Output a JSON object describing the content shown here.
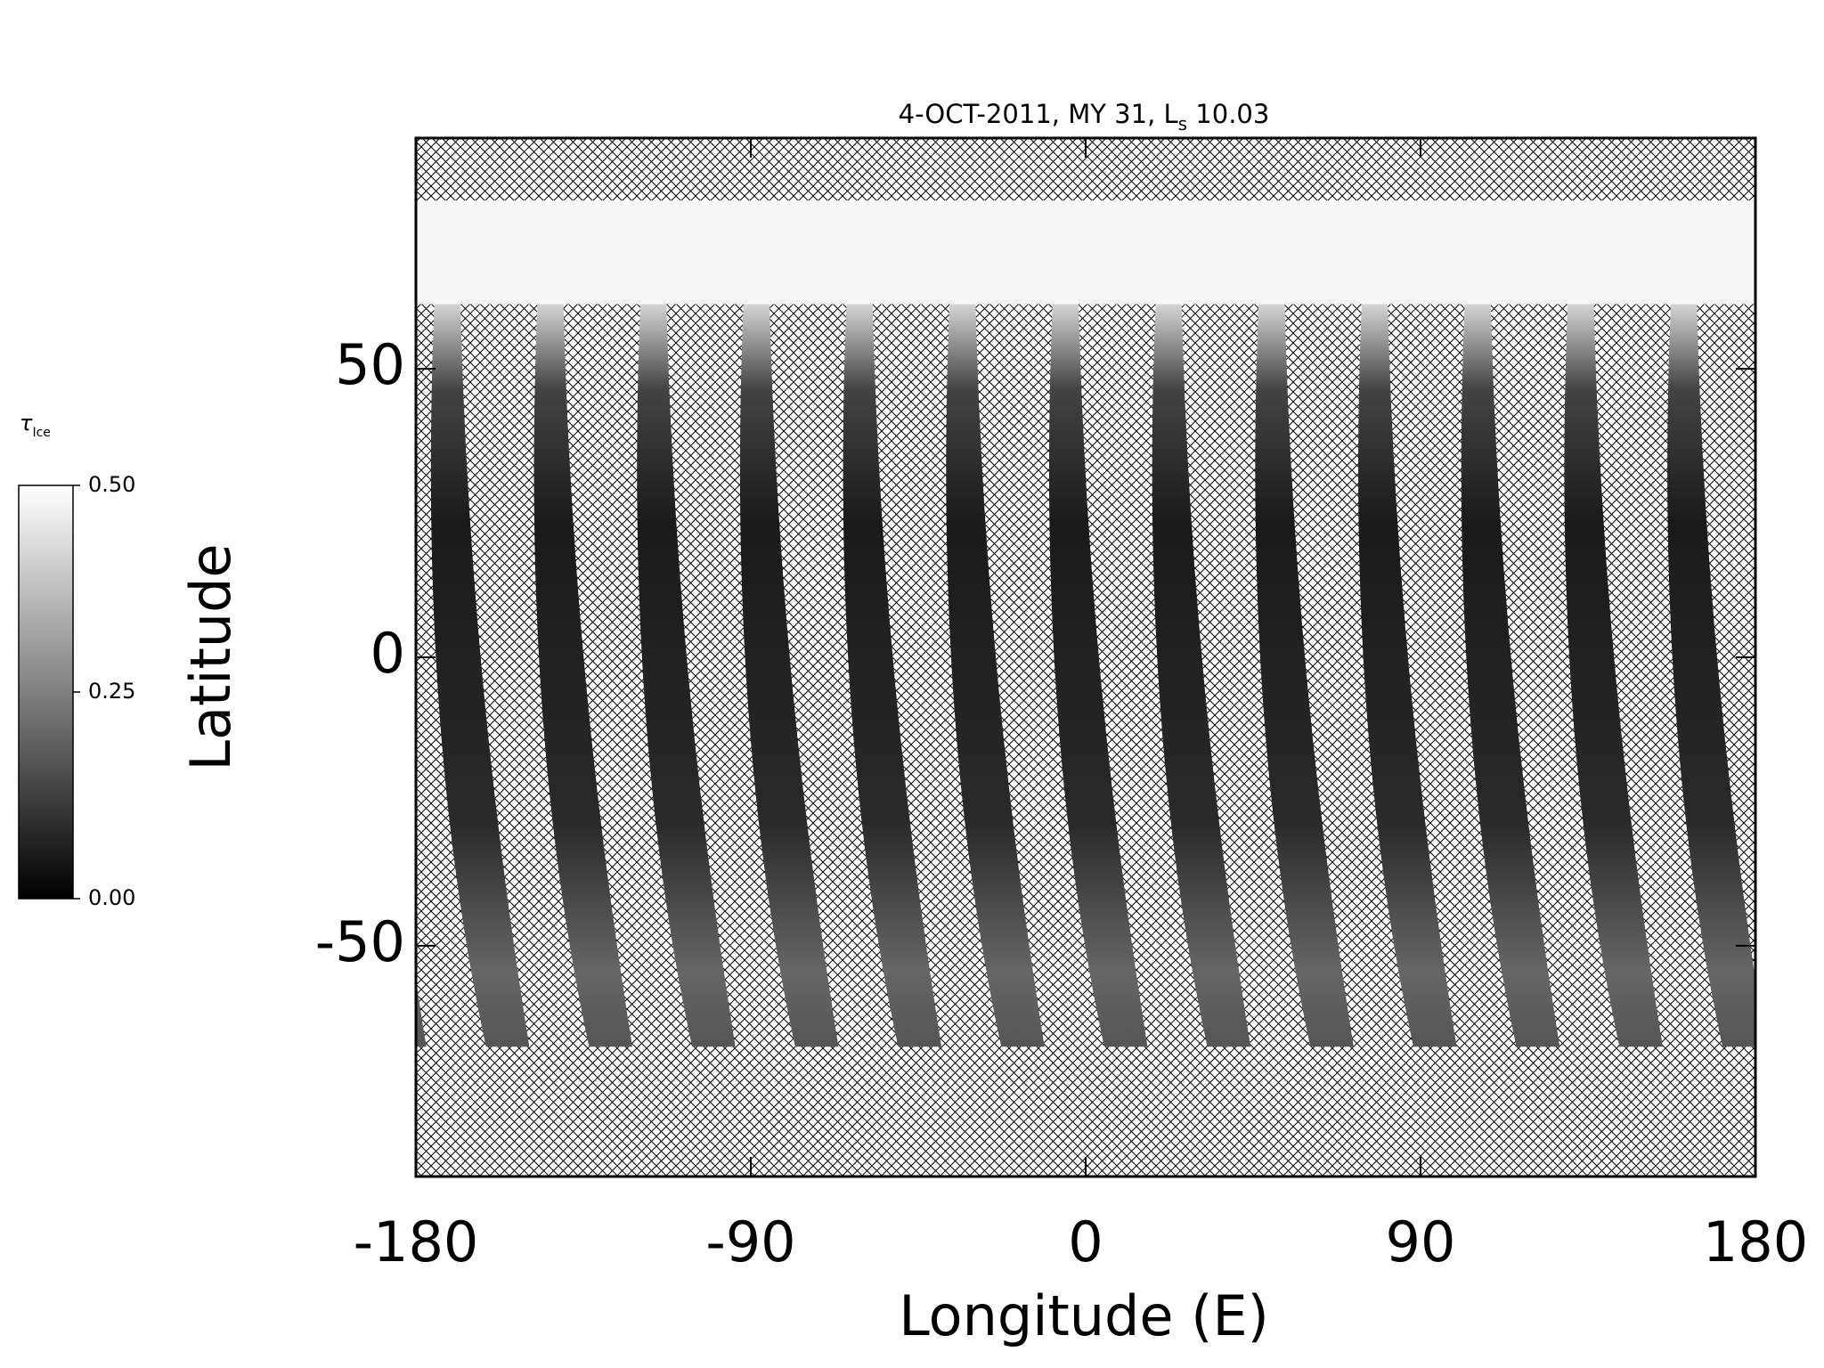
{
  "chart_data": {
    "type": "map",
    "title": "4-OCT-2011, MY 31,  L",
    "title_subscript": "s",
    "title_suffix": " 10.03",
    "xlabel": "Longitude (E)",
    "ylabel": "Latitude",
    "xlim": [
      -180,
      180
    ],
    "xticks": [
      -180,
      -90,
      0,
      90,
      180
    ],
    "ylim": [
      -90,
      90
    ],
    "yticks": [
      -50,
      0,
      50
    ],
    "colorbar": {
      "label": "τ",
      "label_subscript": "Ice",
      "clim": [
        0,
        0.5
      ],
      "ticks": [
        {
          "value": 0,
          "label": "0.00"
        },
        {
          "value": 0.25,
          "label": "0.25"
        },
        {
          "value": 0.5,
          "label": "0.50"
        }
      ],
      "colors": [
        "#000000",
        "#ffffff"
      ]
    }
  }
}
